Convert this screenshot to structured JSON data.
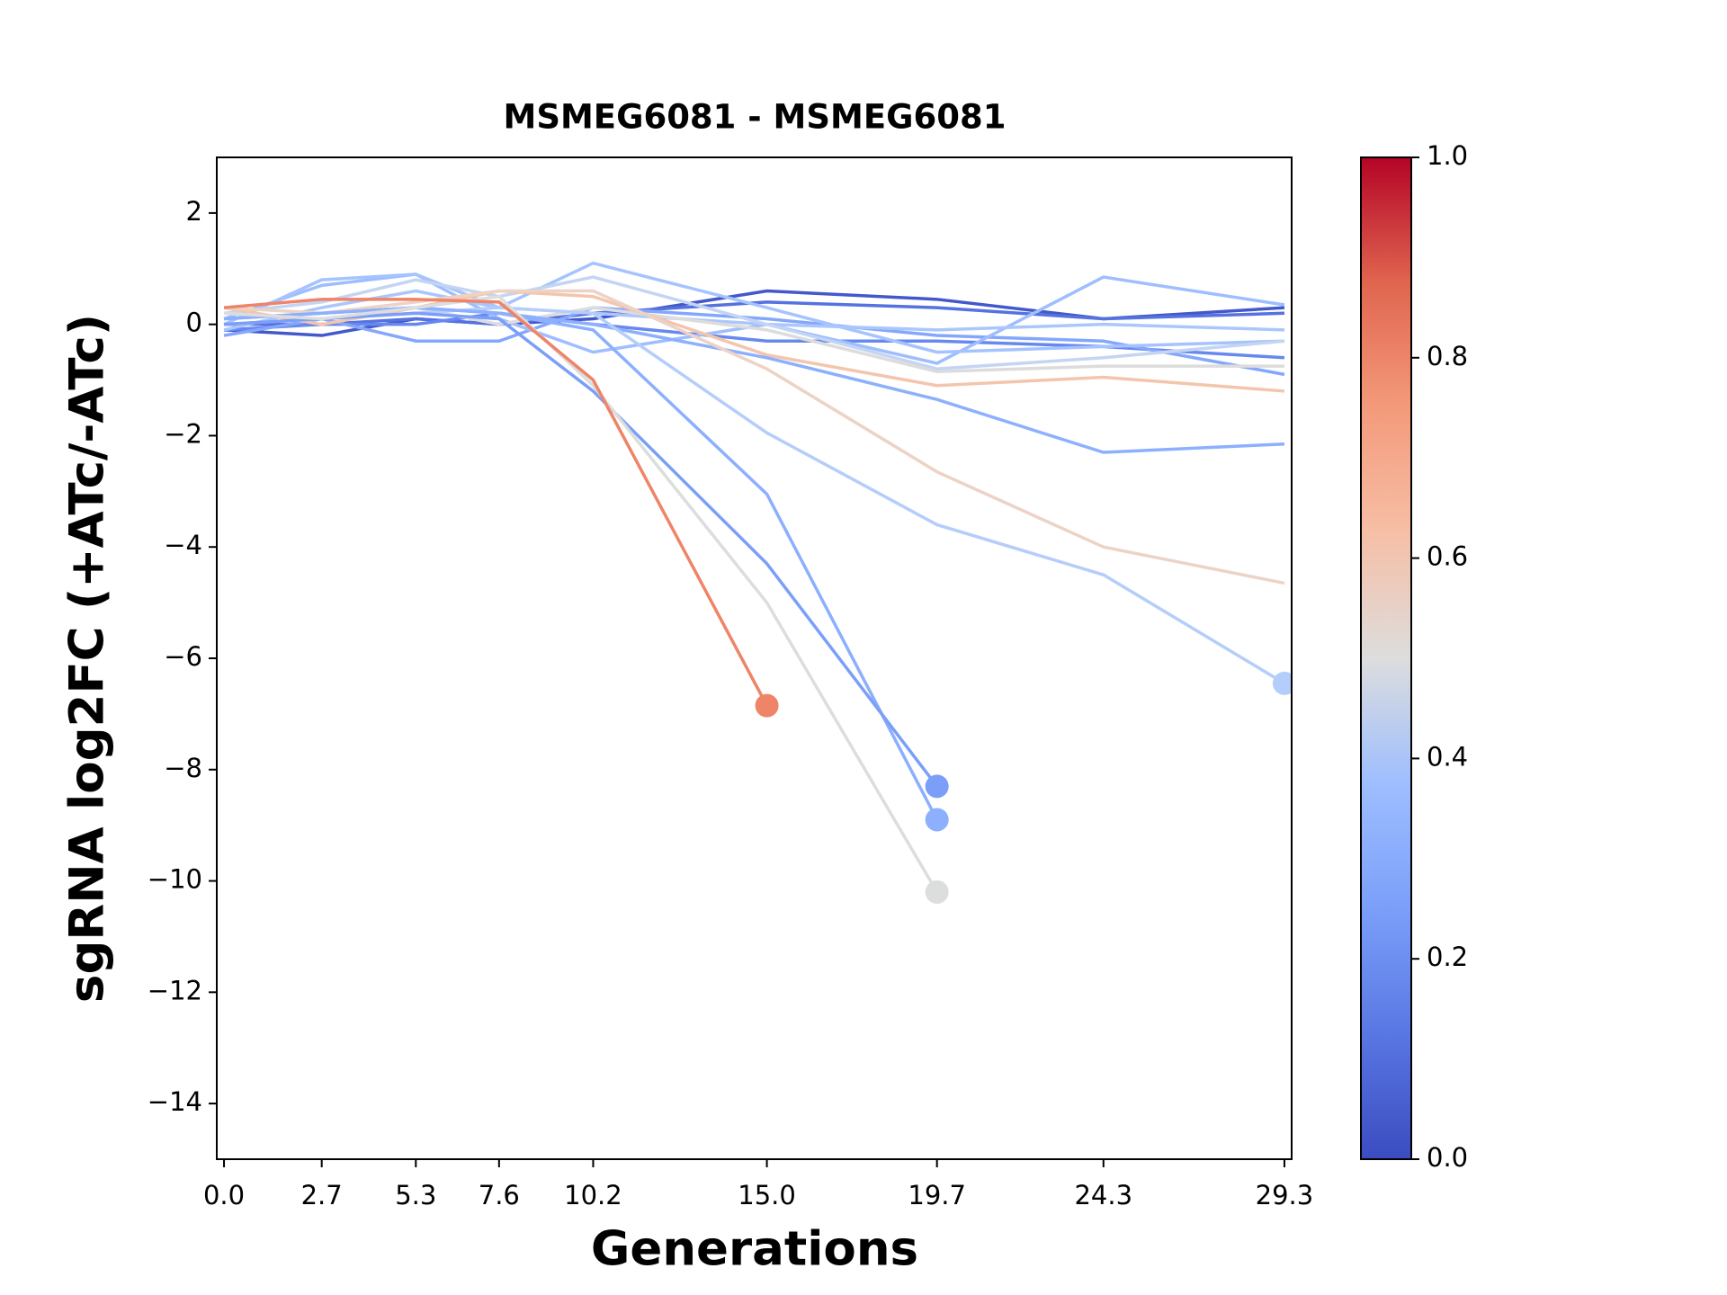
{
  "chart_data": {
    "type": "line",
    "title": "MSMEG6081 - MSMEG6081",
    "x_label": "Generations",
    "y_label": "sgRNA log2FC (+ATc/-ATc)",
    "x": [
      0,
      2.7,
      5.3,
      7.6,
      10.2,
      15.0,
      19.7,
      24.3,
      29.3
    ],
    "xlim": [
      -0.2,
      29.5
    ],
    "xticks": [
      {
        "value": 0,
        "label": "0.0"
      },
      2.7,
      5.3,
      7.6,
      10.2,
      {
        "value": 15,
        "label": "15.0"
      },
      19.7,
      24.3,
      29.3
    ],
    "ylim": [
      -15,
      3
    ],
    "yticks": [
      {
        "value": -14,
        "label": "−14"
      },
      {
        "value": -12,
        "label": "−12"
      },
      {
        "value": -10,
        "label": "−10"
      },
      {
        "value": -8,
        "label": "−8"
      },
      {
        "value": -6,
        "label": "−6"
      },
      {
        "value": -4,
        "label": "−4"
      },
      {
        "value": -2,
        "label": "−2"
      },
      0,
      2
    ],
    "colorbar": {
      "lim": [
        0,
        1
      ],
      "ticks": [
        {
          "value": 0,
          "label": "0.0"
        },
        {
          "value": 0.2,
          "label": "0.2"
        },
        {
          "value": 0.4,
          "label": "0.4"
        },
        {
          "value": 0.6,
          "label": "0.6"
        },
        {
          "value": 0.8,
          "label": "0.8"
        },
        {
          "value": 1,
          "label": "1.0"
        }
      ]
    },
    "series": [
      {
        "color": "#4358cb",
        "values": [
          -0.1,
          -0.2,
          0.1,
          0.0,
          0.1,
          0.6,
          0.45,
          0.1,
          0.3
        ]
      },
      {
        "color": "#5572df",
        "values": [
          0.0,
          0.0,
          0.1,
          0.0,
          0.2,
          0.4,
          0.3,
          0.1,
          0.2
        ]
      },
      {
        "color": "#6788ee",
        "values": [
          -0.1,
          0.0,
          0.0,
          0.2,
          0.0,
          -0.3,
          -0.3,
          -0.4,
          -0.6
        ]
      },
      {
        "color": "#84a7fc",
        "values": [
          -0.2,
          0.1,
          -0.3,
          -0.3,
          0.3,
          0.1,
          -0.2,
          -0.3,
          -0.9
        ]
      },
      {
        "color": "#9ebeff",
        "values": [
          0.1,
          0.7,
          0.9,
          0.1,
          -0.5,
          0.0,
          -0.7,
          0.85,
          0.35
        ]
      },
      {
        "color": "#a5c3fe",
        "values": [
          0.0,
          0.8,
          0.9,
          0.3,
          1.1,
          0.3,
          -0.5,
          -0.4,
          -0.3
        ]
      },
      {
        "color": "#aac7fd",
        "values": [
          -0.1,
          0.3,
          0.6,
          0.3,
          0.2,
          0.0,
          -0.1,
          0.0,
          -0.1
        ]
      },
      {
        "color": "#c4d5f3",
        "values": [
          0.2,
          0.4,
          0.8,
          0.5,
          0.85,
          0.0,
          -0.8,
          -0.6,
          -0.3
        ]
      },
      {
        "color": "#dddcdc",
        "values": [
          0.1,
          0.2,
          0.3,
          0.0,
          0.3,
          -0.1,
          -0.85,
          -0.75,
          -0.75
        ]
      },
      {
        "color": "#f4c5ad",
        "values": [
          0.3,
          0.0,
          0.3,
          0.6,
          0.5,
          -0.55,
          -1.1,
          -0.95,
          -1.2
        ]
      },
      {
        "color": "#8db0fe",
        "values": [
          0.1,
          0.2,
          0.3,
          0.2,
          0.0,
          -0.6,
          -1.35,
          -2.3,
          -2.15
        ]
      },
      {
        "color": "#ecd3c5",
        "values": [
          0.3,
          0.2,
          0.4,
          0.6,
          0.6,
          -0.8,
          -2.65,
          -4.0,
          -4.65
        ]
      },
      {
        "color": "#b5cdfa",
        "values": [
          0.0,
          0.1,
          0.2,
          0.3,
          0.2,
          -1.95,
          -3.6,
          -4.5,
          -6.45
        ],
        "marker": true
      },
      {
        "color": "#8caffe",
        "values": [
          0.1,
          0.2,
          0.3,
          0.2,
          -0.1,
          -3.05,
          -8.9,
          null,
          null
        ],
        "marker": true
      },
      {
        "color": "#7b9ff9",
        "values": [
          0.0,
          0.1,
          0.2,
          0.1,
          -1.2,
          -4.3,
          -8.3,
          null,
          null
        ],
        "marker": true
      },
      {
        "color": "#dcdddd",
        "values": [
          0.2,
          0.1,
          0.3,
          0.5,
          -1.1,
          -5.0,
          -10.2,
          null,
          null
        ],
        "marker": true
      },
      {
        "color": "#ee8468",
        "values": [
          0.3,
          0.45,
          0.45,
          0.4,
          -1.0,
          -6.85,
          null,
          null,
          null
        ],
        "marker": true
      }
    ]
  }
}
